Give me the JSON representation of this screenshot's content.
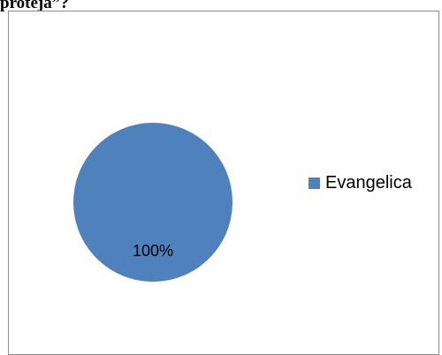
{
  "header": {
    "partial_text": "proteja”?"
  },
  "chart_data": {
    "type": "pie",
    "title": "",
    "slices": [
      {
        "label": "Evangelica",
        "value": 100,
        "data_label": "100%",
        "color": "#4F81BD"
      }
    ],
    "legend": {
      "position": "right",
      "entries": [
        "Evangelica"
      ]
    },
    "colors": {
      "slice_fill": "#4F81BD",
      "frame_border": "#8C8C8C"
    }
  }
}
